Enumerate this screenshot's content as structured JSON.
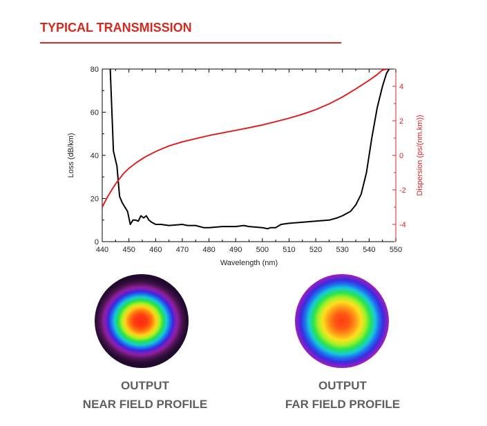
{
  "header": {
    "title": "TYPICAL TRANSMISSION"
  },
  "chart_data": {
    "type": "line",
    "xlabel": "Wavelength (nm)",
    "ylabel": "Loss (dB/km)",
    "y2label": "Dispersion (ps/(nm.km))",
    "xlim": [
      440,
      550
    ],
    "ylim": [
      0,
      80
    ],
    "y2lim": [
      -5,
      5
    ],
    "x_ticks": [
      440,
      450,
      460,
      470,
      480,
      490,
      500,
      510,
      520,
      530,
      540,
      550
    ],
    "y_ticks": [
      0,
      20,
      40,
      60,
      80
    ],
    "y2_ticks": [
      -4,
      -2,
      0,
      2,
      4
    ],
    "legend": "none",
    "grid": false,
    "colors": {
      "loss": "#000000",
      "dispersion": "#e02020"
    },
    "series": [
      {
        "axis": "left",
        "x": [
          443,
          444.2,
          445.5,
          446.5,
          447.5,
          448.5,
          449.5,
          450.5,
          451.5,
          452.5,
          453.5,
          454.5,
          455.5,
          456.5,
          457.5,
          458.5,
          460,
          462,
          465,
          470,
          472,
          475,
          478,
          480,
          485,
          490,
          493,
          495,
          500,
          502,
          503,
          505,
          507,
          510,
          515,
          520,
          525,
          528,
          530,
          533,
          535,
          537,
          539,
          541,
          543,
          545,
          546.5,
          547.5
        ],
        "y": [
          80,
          42,
          35,
          21,
          18,
          16,
          14,
          8,
          10,
          10,
          9.5,
          12,
          11,
          12,
          10,
          9,
          8,
          8,
          7.5,
          8,
          7.5,
          7.5,
          6.5,
          6.5,
          7,
          7,
          7.5,
          7,
          6.5,
          6,
          6.5,
          6.5,
          8,
          8.5,
          9,
          9.5,
          10,
          11,
          12,
          14,
          17,
          22,
          32,
          48,
          62,
          72,
          78,
          80
        ]
      },
      {
        "axis": "right",
        "x": [
          440,
          442,
          445,
          448,
          450,
          453,
          456,
          460,
          465,
          470,
          475,
          480,
          485,
          490,
          495,
          500,
          505,
          510,
          515,
          520,
          525,
          530,
          535,
          540,
          543,
          545,
          547
        ],
        "y": [
          -3.0,
          -2.4,
          -1.65,
          -1.05,
          -0.75,
          -0.4,
          -0.1,
          0.22,
          0.55,
          0.78,
          0.97,
          1.15,
          1.3,
          1.45,
          1.6,
          1.76,
          1.95,
          2.15,
          2.38,
          2.65,
          2.98,
          3.38,
          3.85,
          4.35,
          4.68,
          4.95,
          5.0
        ]
      }
    ]
  },
  "profiles": {
    "near": {
      "line1": "OUTPUT",
      "line2": "NEAR FIELD PROFILE"
    },
    "far": {
      "line1": "OUTPUT",
      "line2": "FAR FIELD PROFILE"
    }
  }
}
